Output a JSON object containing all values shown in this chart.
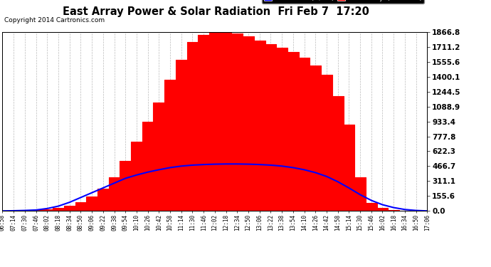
{
  "title": "East Array Power & Solar Radiation  Fri Feb 7  17:20",
  "copyright": "Copyright 2014 Cartronics.com",
  "background_color": "#ffffff",
  "plot_bg_color": "#ffffff",
  "y_ticks": [
    0.0,
    155.6,
    311.1,
    466.7,
    622.3,
    777.8,
    933.4,
    1088.9,
    1244.5,
    1400.1,
    1555.6,
    1711.2,
    1866.8
  ],
  "y_max": 1866.8,
  "grid_color": "#bbbbbb",
  "fill_color": "#ff0000",
  "line_color": "#0000ff",
  "legend_radiation_color": "#0000ff",
  "legend_east_array_color": "#ff0000",
  "x_labels": [
    "06:58",
    "07:14",
    "07:30",
    "07:46",
    "08:02",
    "08:18",
    "08:34",
    "08:50",
    "09:06",
    "09:22",
    "09:38",
    "09:54",
    "10:10",
    "10:26",
    "10:42",
    "10:58",
    "11:14",
    "11:30",
    "11:46",
    "12:02",
    "12:18",
    "12:34",
    "12:50",
    "13:06",
    "13:22",
    "13:38",
    "13:54",
    "14:10",
    "14:26",
    "14:42",
    "14:58",
    "15:14",
    "15:30",
    "15:46",
    "16:02",
    "16:18",
    "16:34",
    "16:50",
    "17:06"
  ],
  "east_array": [
    0,
    0,
    5,
    10,
    20,
    35,
    55,
    90,
    150,
    230,
    350,
    520,
    720,
    930,
    1130,
    1370,
    1580,
    1760,
    1840,
    1860,
    1866,
    1850,
    1820,
    1780,
    1740,
    1700,
    1660,
    1600,
    1520,
    1420,
    1200,
    900,
    350,
    80,
    30,
    10,
    5,
    2,
    0
  ],
  "radiation": [
    0,
    2,
    5,
    10,
    25,
    50,
    90,
    140,
    190,
    240,
    290,
    340,
    375,
    405,
    430,
    452,
    468,
    478,
    484,
    488,
    490,
    490,
    488,
    484,
    478,
    468,
    452,
    430,
    400,
    360,
    305,
    240,
    170,
    110,
    65,
    35,
    15,
    5,
    0
  ]
}
